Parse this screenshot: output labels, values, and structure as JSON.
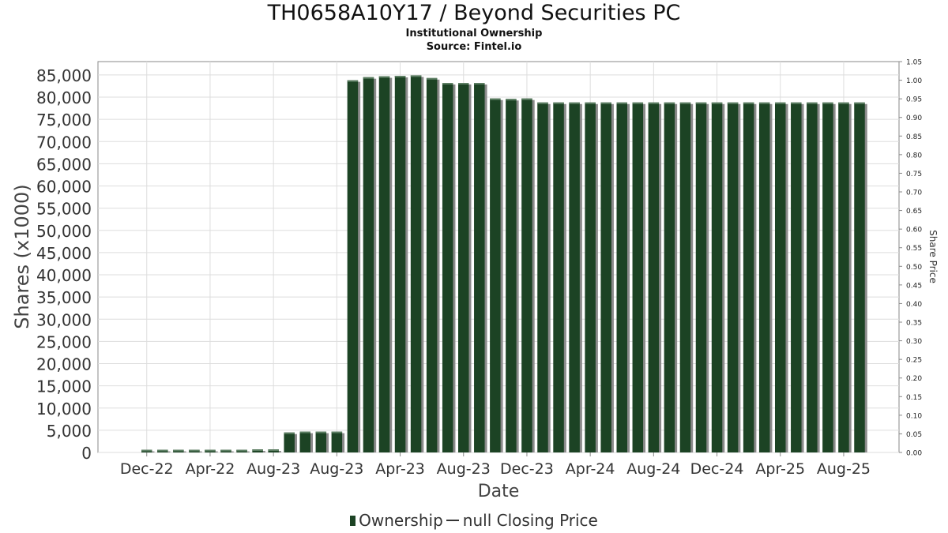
{
  "chart_data": {
    "type": "bar",
    "title": "TH0658A10Y17 / Beyond Securities PC",
    "subtitle_1": "Institutional Ownership",
    "subtitle_2": "Source: Fintel.io",
    "xlabel": "Date",
    "ylabel": "Shares (x1000)",
    "y2label": "Share Price",
    "ylim": [
      0,
      88000
    ],
    "y2lim": [
      0,
      1.05
    ],
    "yticks": [
      0,
      5000,
      10000,
      15000,
      20000,
      25000,
      30000,
      35000,
      40000,
      45000,
      50000,
      55000,
      60000,
      65000,
      70000,
      75000,
      80000,
      85000
    ],
    "ytick_labels": [
      "0",
      "5,000",
      "10,000",
      "15,000",
      "20,000",
      "25,000",
      "30,000",
      "35,000",
      "40,000",
      "45,000",
      "50,000",
      "55,000",
      "60,000",
      "65,000",
      "70,000",
      "75,000",
      "80,000",
      "85,000"
    ],
    "y2tick_labels": [
      "0.00",
      "0.05",
      "0.10",
      "0.15",
      "0.20",
      "0.25",
      "0.30",
      "0.35",
      "0.40",
      "0.45",
      "0.50",
      "0.55",
      "0.60",
      "0.65",
      "0.70",
      "0.75",
      "0.80",
      "0.85",
      "0.90",
      "0.95",
      "1.00",
      "1.05"
    ],
    "xtick_labels": [
      "Dec-22",
      "Apr-22",
      "Aug-23",
      "Aug-23",
      "Apr-23",
      "Aug-23",
      "Dec-23",
      "Apr-24",
      "Aug-24",
      "Dec-24",
      "Apr-25",
      "Aug-25"
    ],
    "grid": true,
    "legend_position": "bottom",
    "colors": {
      "bar": "#1c4324",
      "bar_shadow": "#8a8a8a",
      "grid": "#dddddd",
      "axis": "#888888"
    },
    "series": [
      {
        "name": "Ownership",
        "values": [
          600,
          600,
          600,
          600,
          600,
          600,
          600,
          700,
          700,
          4500,
          4700,
          4700,
          4700,
          83800,
          84500,
          84700,
          84800,
          84900,
          84300,
          83200,
          83200,
          83200,
          79700,
          79600,
          79700,
          78800,
          78800,
          78800,
          78800,
          78800,
          78800,
          78800,
          78800,
          78800,
          78800,
          78800,
          78800,
          78800,
          78800,
          78800,
          78800,
          78800,
          78800,
          78800,
          78800,
          78800
        ]
      },
      {
        "name": "null Closing Price",
        "values": []
      }
    ]
  }
}
